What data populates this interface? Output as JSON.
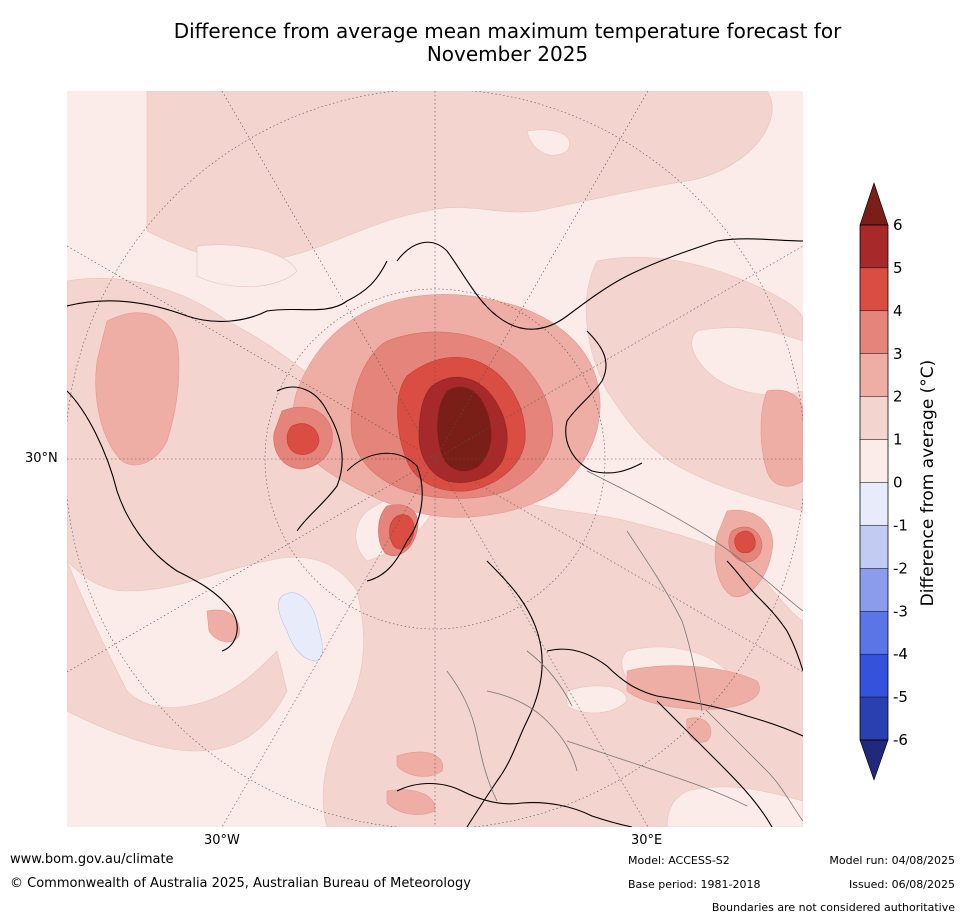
{
  "title_line1": "Difference from average mean maximum temperature forecast for",
  "title_line2": "November 2025",
  "map": {
    "lat_label": "30°N",
    "lon_labels": [
      "30°W",
      "30°E"
    ]
  },
  "colorbar": {
    "label": "Difference from average (°C)",
    "ticks": [
      "6",
      "5",
      "4",
      "3",
      "2",
      "1",
      "0",
      "-1",
      "-2",
      "-3",
      "-4",
      "-5",
      "-6"
    ],
    "colors": {
      "gt6": "#7a1e18",
      "5to6": "#a8292a",
      "4to5": "#d94d42",
      "3to4": "#e5847a",
      "2to3": "#eeaea5",
      "1to2": "#f4d4cf",
      "0to1": "#fbece9",
      "m1to0": "#e8ecfa",
      "m2tom1": "#c2cbf2",
      "m3tom2": "#8b9cec",
      "m4tom3": "#5b74e6",
      "m5tom4": "#3552dc",
      "m6tom5": "#2a3fb0",
      "ltm6": "#1f2a7d"
    }
  },
  "footer": {
    "url": "www.bom.gov.au/climate",
    "copyright": "© Commonwealth of Australia 2025, Australian Bureau of Meteorology",
    "model": "Model: ACCESS-S2",
    "base_period": "Base period: 1981-2018",
    "model_run": "Model run: 04/08/2025",
    "issued": "Issued: 06/08/2025",
    "boundaries": "Boundaries are not considered authoritative"
  }
}
